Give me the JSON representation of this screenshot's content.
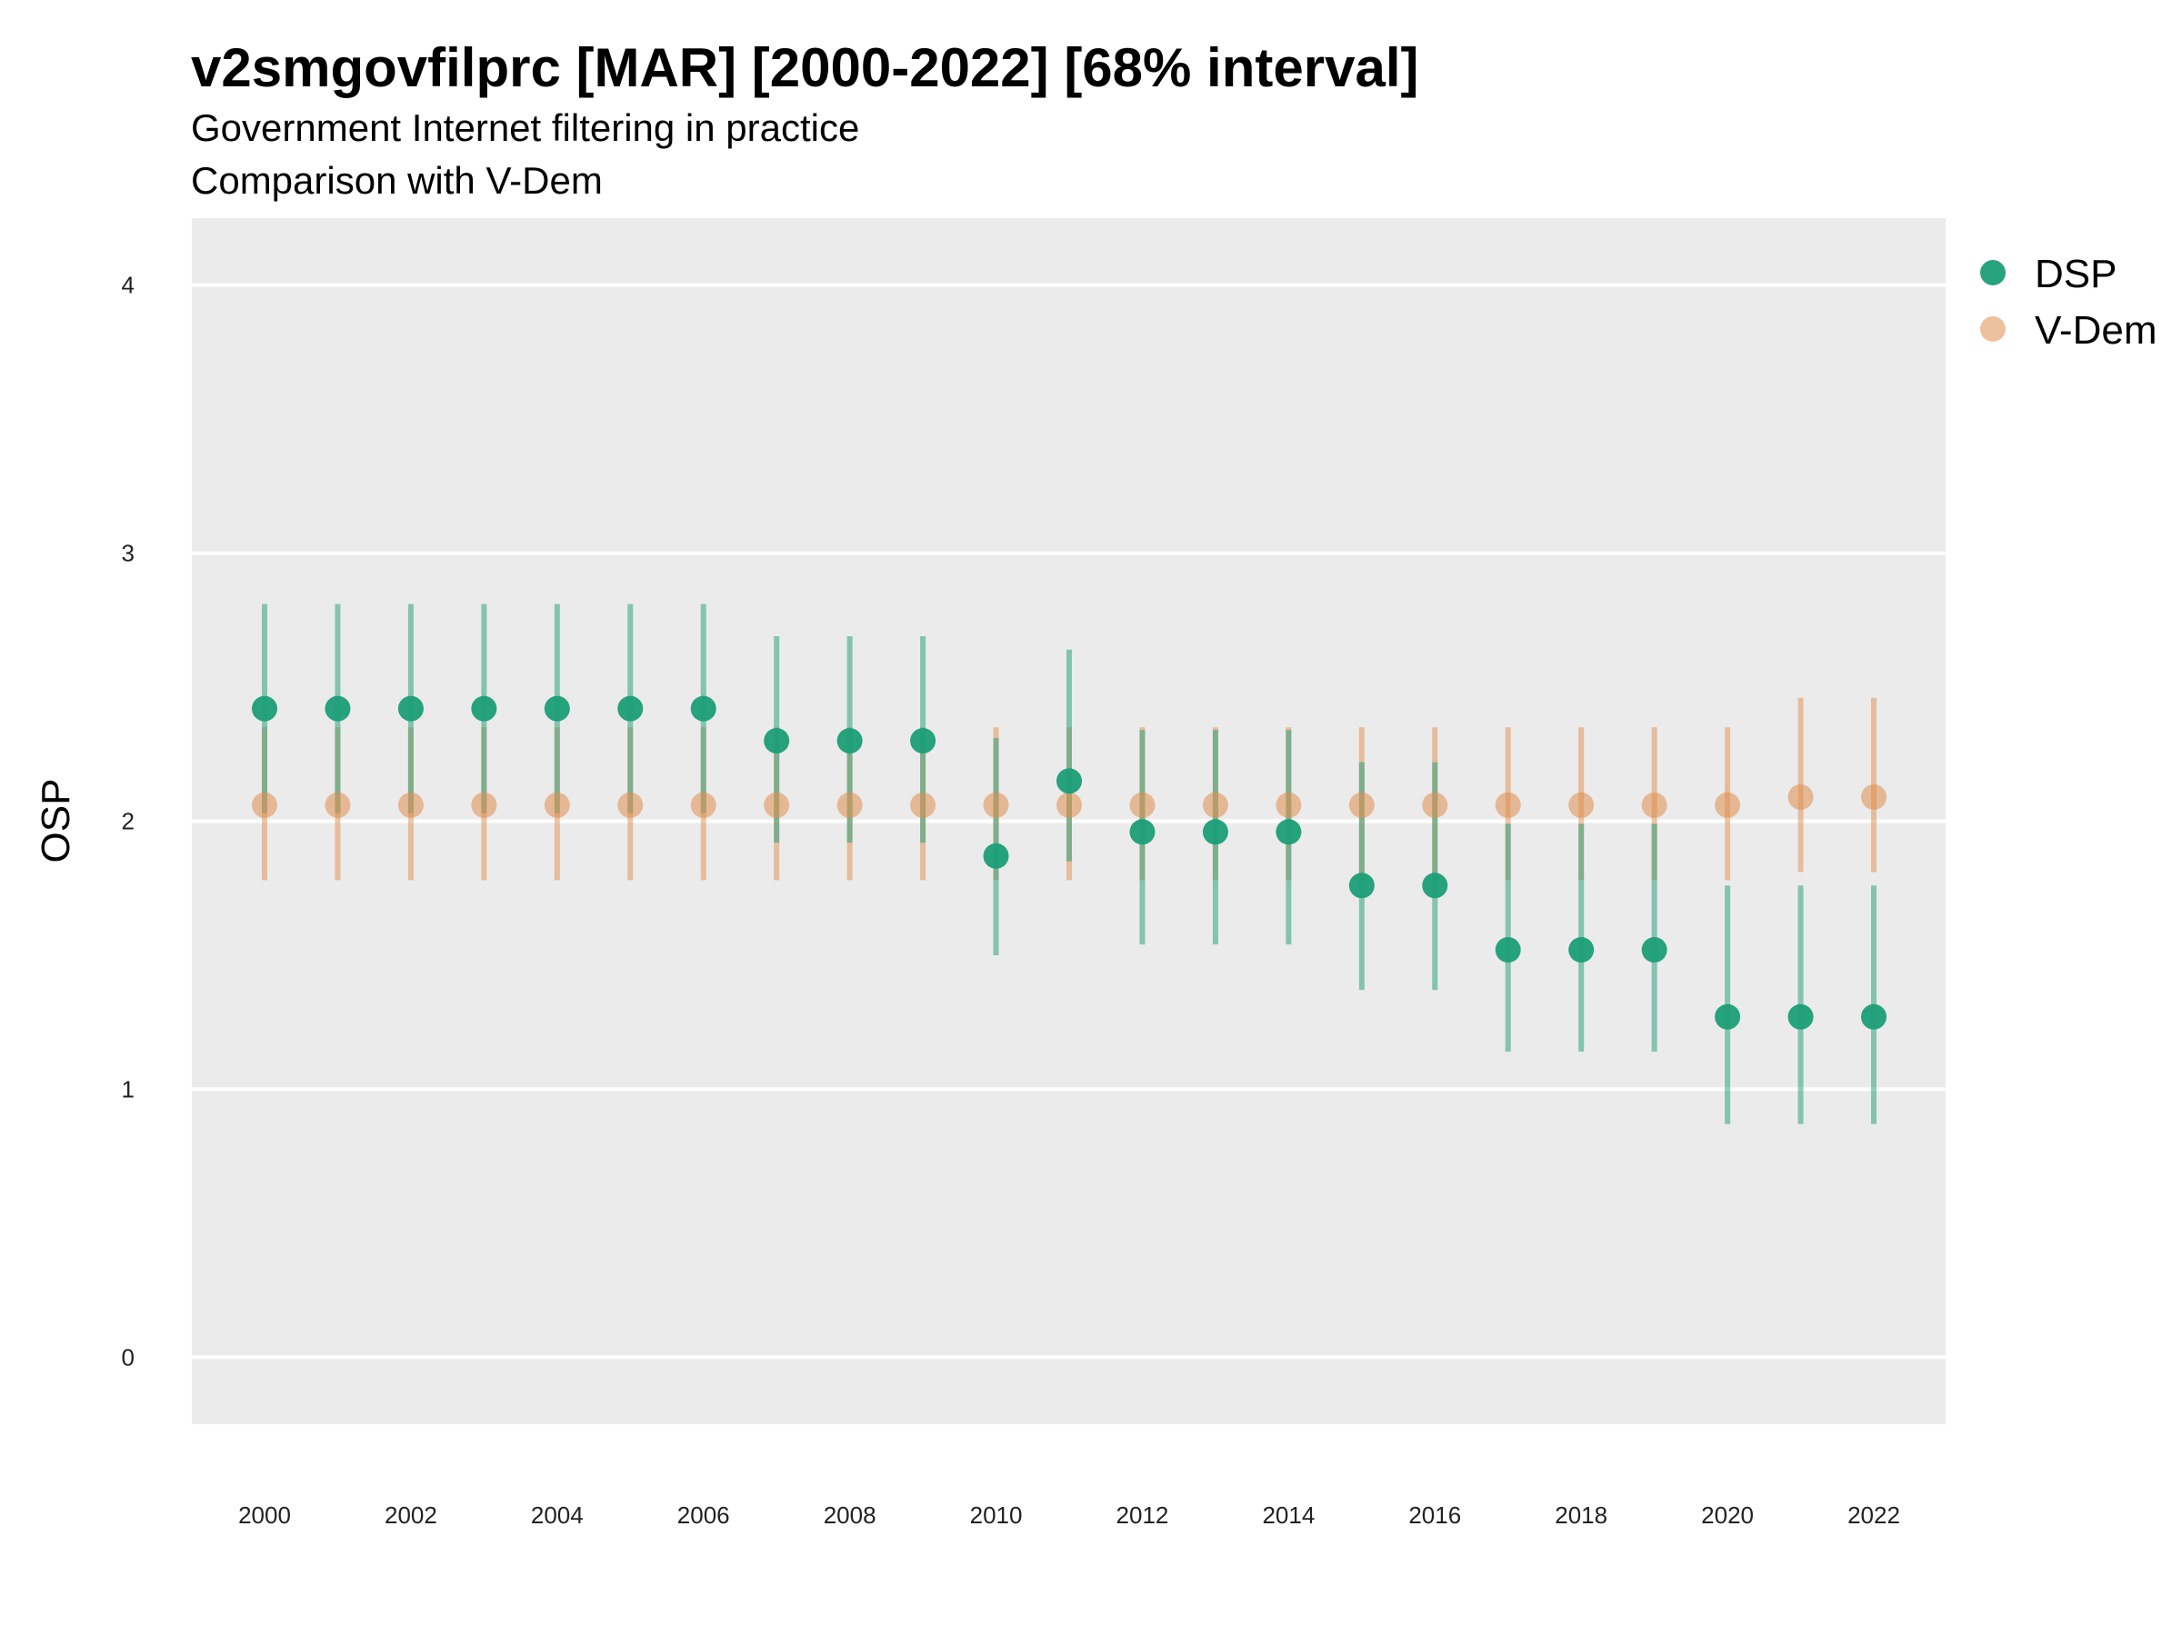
{
  "chart_data": {
    "type": "scatter",
    "title": "v2smgovfilprc [MAR] [2000-2022] [68% interval]",
    "subtitle_lines": [
      "Government Internet filtering in practice",
      "Comparison with V-Dem"
    ],
    "ylabel": "OSP",
    "xlabel": "",
    "ylim": [
      -0.25,
      4.25
    ],
    "yticks": [
      "0",
      "1",
      "2",
      "3",
      "4"
    ],
    "xticks": [
      "2000",
      "2002",
      "2004",
      "2006",
      "2008",
      "2010",
      "2012",
      "2014",
      "2016",
      "2018",
      "2020",
      "2022"
    ],
    "grid": true,
    "legend_position": "top-right",
    "x": [
      2000,
      2001,
      2002,
      2003,
      2004,
      2005,
      2006,
      2007,
      2008,
      2009,
      2010,
      2011,
      2012,
      2013,
      2014,
      2015,
      2016,
      2017,
      2018,
      2019,
      2020,
      2021,
      2022
    ],
    "series": [
      {
        "name": "DSP",
        "color": "#1b9e77",
        "values": [
          2.42,
          2.42,
          2.42,
          2.42,
          2.42,
          2.42,
          2.42,
          2.3,
          2.3,
          2.3,
          1.87,
          2.15,
          1.96,
          1.96,
          1.96,
          1.76,
          1.76,
          1.52,
          1.52,
          1.52,
          1.27,
          1.27,
          1.27
        ],
        "lower": [
          2.03,
          2.03,
          2.03,
          2.03,
          2.03,
          2.03,
          2.03,
          1.92,
          1.92,
          1.92,
          1.5,
          1.85,
          1.54,
          1.54,
          1.54,
          1.37,
          1.37,
          1.14,
          1.14,
          1.14,
          0.87,
          0.87,
          0.87
        ],
        "upper": [
          2.81,
          2.81,
          2.81,
          2.81,
          2.81,
          2.81,
          2.81,
          2.69,
          2.69,
          2.69,
          2.31,
          2.64,
          2.34,
          2.34,
          2.34,
          2.22,
          2.22,
          1.99,
          1.99,
          1.99,
          1.76,
          1.76,
          1.76
        ]
      },
      {
        "name": "V-Dem",
        "color": "#e08e4e",
        "values": [
          2.06,
          2.06,
          2.06,
          2.06,
          2.06,
          2.06,
          2.06,
          2.06,
          2.06,
          2.06,
          2.06,
          2.06,
          2.06,
          2.06,
          2.06,
          2.06,
          2.06,
          2.06,
          2.06,
          2.06,
          2.06,
          2.09,
          2.09
        ],
        "lower": [
          1.78,
          1.78,
          1.78,
          1.78,
          1.78,
          1.78,
          1.78,
          1.78,
          1.78,
          1.78,
          1.78,
          1.78,
          1.78,
          1.78,
          1.78,
          1.78,
          1.78,
          1.78,
          1.78,
          1.78,
          1.78,
          1.81,
          1.81
        ],
        "upper": [
          2.35,
          2.35,
          2.35,
          2.35,
          2.35,
          2.35,
          2.35,
          2.35,
          2.35,
          2.35,
          2.35,
          2.35,
          2.35,
          2.35,
          2.35,
          2.35,
          2.35,
          2.35,
          2.35,
          2.35,
          2.35,
          2.46,
          2.46
        ]
      }
    ]
  }
}
